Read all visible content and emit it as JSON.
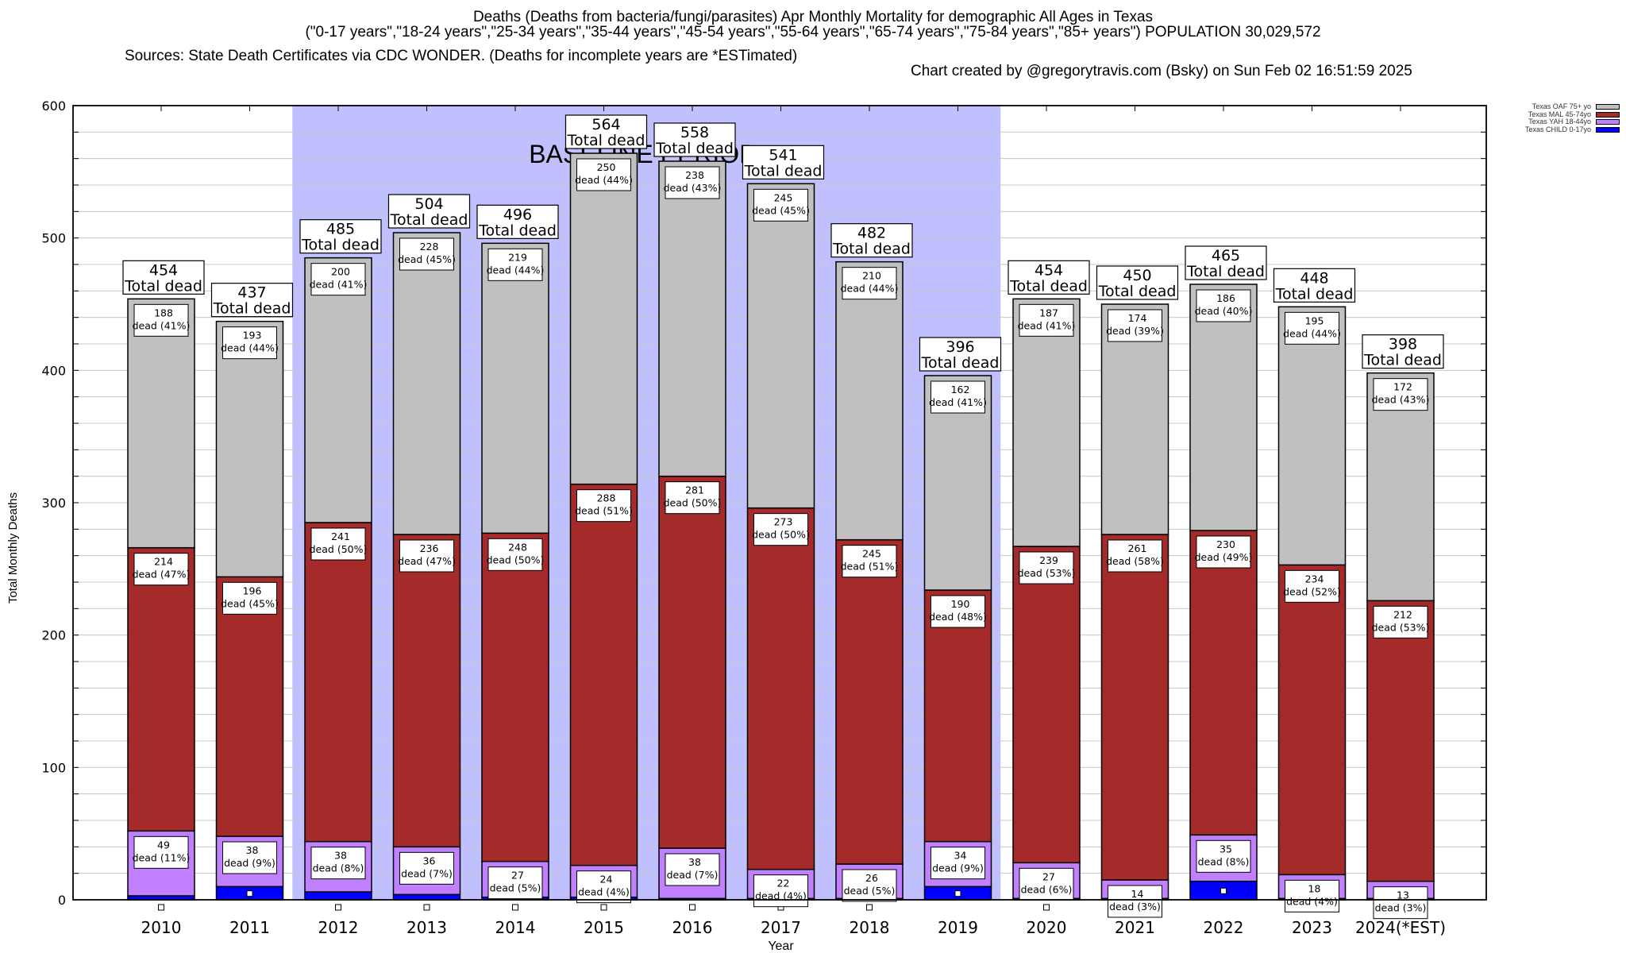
{
  "chart_data": {
    "type": "bar",
    "stacked": true,
    "title_lines": [
      "Deaths (Deaths from bacteria/fungi/parasites) Apr Monthly Mortality for demographic All Ages in Texas",
      "(\"0-17 years\",\"18-24 years\",\"25-34 years\",\"35-44 years\",\"45-54 years\",\"55-64 years\",\"65-74 years\",\"75-84 years\",\"85+ years\") POPULATION 30,029,572"
    ],
    "sources_text": "Sources: State Death Certificates via CDC WONDER. (Deaths for incomplete years are *ESTimated)",
    "credit_text": "Chart created by @gregorytravis.com (Bsky) on Sun Feb 02 16:51:59 2025",
    "xlabel": "Year",
    "ylabel": "Total Monthly Deaths",
    "ylim": [
      0,
      600
    ],
    "yticks": [
      0,
      100,
      200,
      300,
      400,
      500,
      600
    ],
    "minor_grid_step": 20,
    "grid": true,
    "legend_position": "top-right",
    "categories": [
      "2010",
      "2011",
      "2012",
      "2013",
      "2014",
      "2015",
      "2016",
      "2017",
      "2018",
      "2019",
      "2020",
      "2021",
      "2022",
      "2023",
      "2024(*EST)"
    ],
    "series": [
      {
        "name": "Texas CHILD 0-17yo",
        "color": "#0000ff",
        "values": [
          3,
          10,
          6,
          4,
          2,
          2,
          1,
          1,
          1,
          10,
          1,
          1,
          14,
          1,
          1
        ]
      },
      {
        "name": "Texas YAH 18-44yo",
        "color": "#c080ff",
        "values": [
          49,
          38,
          38,
          36,
          27,
          24,
          38,
          22,
          26,
          34,
          27,
          14,
          35,
          18,
          13
        ],
        "percent_labels": [
          "11%",
          "9%",
          "8%",
          "7%",
          "5%",
          "4%",
          "7%",
          "4%",
          "5%",
          "9%",
          "6%",
          "3%",
          "8%",
          "4%",
          "3%"
        ]
      },
      {
        "name": "Texas MAL 45-74yo",
        "color": "#a52a2a",
        "values": [
          214,
          196,
          241,
          236,
          248,
          288,
          281,
          273,
          245,
          190,
          239,
          261,
          230,
          234,
          212
        ],
        "percent_labels": [
          "47%",
          "45%",
          "50%",
          "47%",
          "50%",
          "51%",
          "50%",
          "50%",
          "51%",
          "48%",
          "53%",
          "58%",
          "49%",
          "52%",
          "53%"
        ]
      },
      {
        "name": "Texas OAF 75+ yo",
        "color": "#c0c0c0",
        "values": [
          188,
          193,
          200,
          228,
          219,
          250,
          238,
          245,
          210,
          162,
          187,
          174,
          186,
          195,
          172
        ],
        "percent_labels": [
          "41%",
          "44%",
          "41%",
          "45%",
          "44%",
          "44%",
          "43%",
          "45%",
          "44%",
          "41%",
          "41%",
          "39%",
          "40%",
          "44%",
          "43%"
        ]
      }
    ],
    "totals": [
      454,
      437,
      485,
      504,
      496,
      564,
      558,
      541,
      482,
      396,
      454,
      450,
      465,
      448,
      398
    ],
    "total_label_suffix": "Total dead",
    "segment_label_prefix": "dead",
    "baseline_period": {
      "label": "BASELINE PERIOD",
      "start": "2012",
      "end": "2019",
      "color": "#c0c0ff"
    },
    "legend_order": [
      "Texas OAF 75+ yo",
      "Texas MAL 45-74yo",
      "Texas YAH 18-44yo",
      "Texas CHILD 0-17yo"
    ]
  }
}
